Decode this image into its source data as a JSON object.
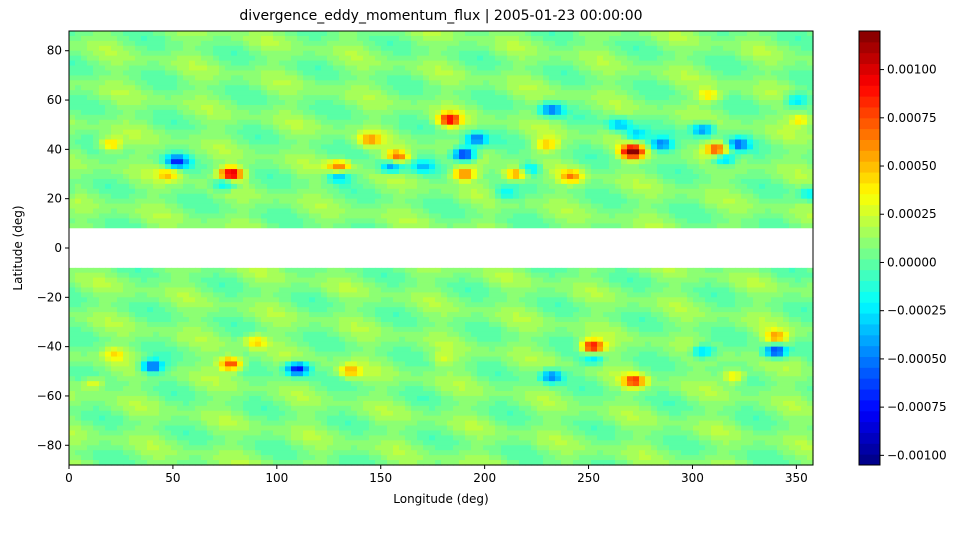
{
  "chart_data": {
    "type": "heatmap",
    "title": "divergence_eddy_momentum_flux | 2005-01-23 00:00:00",
    "xlabel": "Longitude (deg)",
    "ylabel": "Latitude (deg)",
    "xlim": [
      0,
      358
    ],
    "ylim": [
      -88,
      88
    ],
    "xticks": [
      0,
      50,
      100,
      150,
      200,
      250,
      300,
      350
    ],
    "yticks": [
      -80,
      -60,
      -40,
      -20,
      0,
      20,
      40,
      60,
      80
    ],
    "missing_band_lat": [
      -8,
      8
    ],
    "colormap": "jet",
    "colorbar": {
      "vmin": -0.00105,
      "vmax": 0.0012,
      "levels": 40,
      "ticks": [
        -0.001,
        -0.00075,
        -0.0005,
        -0.00025,
        0,
        0.00025,
        0.0005,
        0.00075,
        0.001
      ],
      "ticklabels": [
        "−0.00100",
        "−0.00075",
        "−0.00050",
        "−0.00025",
        "0.00000",
        "0.00025",
        "0.00050",
        "0.00075",
        "0.00100"
      ]
    },
    "background_value": 8e-05,
    "features": [
      {
        "lon": 183,
        "lat": 52,
        "value": 0.00085
      },
      {
        "lon": 190,
        "lat": 38,
        "value": -0.0009
      },
      {
        "lon": 196,
        "lat": 44,
        "value": -0.0006
      },
      {
        "lon": 271,
        "lat": 39,
        "value": 0.00115
      },
      {
        "lon": 273,
        "lat": 46,
        "value": -0.0004
      },
      {
        "lon": 78,
        "lat": 30,
        "value": 0.00105
      },
      {
        "lon": 75,
        "lat": 26,
        "value": -0.00045
      },
      {
        "lon": 52,
        "lat": 35,
        "value": -0.0007
      },
      {
        "lon": 48,
        "lat": 30,
        "value": 0.0004
      },
      {
        "lon": 20,
        "lat": 42,
        "value": 0.00045
      },
      {
        "lon": 130,
        "lat": 33,
        "value": 0.0006
      },
      {
        "lon": 130,
        "lat": 29,
        "value": -0.00045
      },
      {
        "lon": 158,
        "lat": 37,
        "value": 0.00065
      },
      {
        "lon": 155,
        "lat": 33,
        "value": -0.00055
      },
      {
        "lon": 145,
        "lat": 44,
        "value": 0.00045
      },
      {
        "lon": 190,
        "lat": 30,
        "value": 0.0006
      },
      {
        "lon": 170,
        "lat": 33,
        "value": -0.00035
      },
      {
        "lon": 215,
        "lat": 30,
        "value": 0.0006
      },
      {
        "lon": 222,
        "lat": 32,
        "value": -0.0004
      },
      {
        "lon": 230,
        "lat": 42,
        "value": 0.0004
      },
      {
        "lon": 232,
        "lat": 56,
        "value": -0.0006
      },
      {
        "lon": 242,
        "lat": 29,
        "value": 0.0005
      },
      {
        "lon": 265,
        "lat": 50,
        "value": -0.00045
      },
      {
        "lon": 285,
        "lat": 42,
        "value": -0.0006
      },
      {
        "lon": 305,
        "lat": 48,
        "value": -0.0006
      },
      {
        "lon": 312,
        "lat": 40,
        "value": 0.0007
      },
      {
        "lon": 315,
        "lat": 36,
        "value": -0.0005
      },
      {
        "lon": 322,
        "lat": 42,
        "value": -0.0006
      },
      {
        "lon": 308,
        "lat": 62,
        "value": 0.00035
      },
      {
        "lon": 350,
        "lat": 60,
        "value": -0.0004
      },
      {
        "lon": 352,
        "lat": 52,
        "value": 0.00035
      },
      {
        "lon": 356,
        "lat": 22,
        "value": -0.0003
      },
      {
        "lon": 210,
        "lat": 22,
        "value": -0.0003
      },
      {
        "lon": 40,
        "lat": -48,
        "value": -0.0007
      },
      {
        "lon": 22,
        "lat": -43,
        "value": 0.0003
      },
      {
        "lon": 78,
        "lat": -47,
        "value": 0.00075
      },
      {
        "lon": 110,
        "lat": -49,
        "value": -0.0009
      },
      {
        "lon": 90,
        "lat": -38,
        "value": 0.0004
      },
      {
        "lon": 135,
        "lat": -50,
        "value": 0.00045
      },
      {
        "lon": 232,
        "lat": -52,
        "value": -0.0006
      },
      {
        "lon": 252,
        "lat": -40,
        "value": 0.0009
      },
      {
        "lon": 252,
        "lat": -45,
        "value": -0.0003
      },
      {
        "lon": 272,
        "lat": -54,
        "value": 0.0007
      },
      {
        "lon": 305,
        "lat": -42,
        "value": -0.0005
      },
      {
        "lon": 320,
        "lat": -52,
        "value": 0.0004
      },
      {
        "lon": 340,
        "lat": -42,
        "value": -0.0008
      },
      {
        "lon": 340,
        "lat": -36,
        "value": 0.0005
      },
      {
        "lon": 12,
        "lat": -55,
        "value": 0.0003
      },
      {
        "lon": 180,
        "lat": -45,
        "value": 0.0002
      }
    ]
  }
}
